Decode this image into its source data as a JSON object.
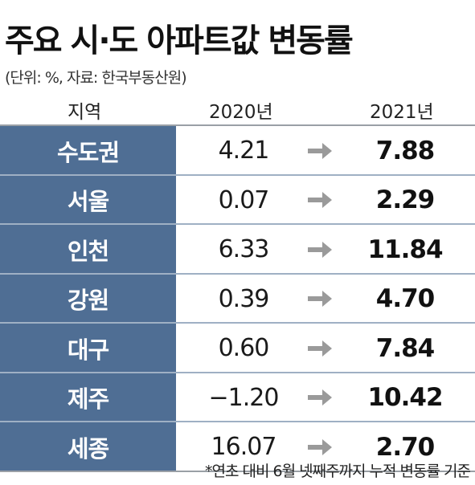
{
  "title": "주요 시·도 아파트값 변동률",
  "unit_note": "(단위: %, 자료: 한국부동산원)",
  "header": {
    "region": "지역",
    "year1": "2020년",
    "year2": "2021년"
  },
  "colors": {
    "region_cell": "#4f6e94",
    "arrow": "#9a9a9a"
  },
  "footnote": "*연초 대비 6월 넷째주까지 누적 변동률 기준",
  "chart_data": {
    "type": "table",
    "columns": [
      "지역",
      "2020년",
      "2021년"
    ],
    "rows": [
      {
        "region": "수도권",
        "y2020": "4.21",
        "y2021": "7.88"
      },
      {
        "region": "서울",
        "y2020": "0.07",
        "y2021": "2.29"
      },
      {
        "region": "인천",
        "y2020": "6.33",
        "y2021": "11.84"
      },
      {
        "region": "강원",
        "y2020": "0.39",
        "y2021": "4.70"
      },
      {
        "region": "대구",
        "y2020": "0.60",
        "y2021": "7.84"
      },
      {
        "region": "제주",
        "y2020": "−1.20",
        "y2021": "10.42"
      },
      {
        "region": "세종",
        "y2020": "16.07",
        "y2021": "2.70"
      }
    ]
  }
}
